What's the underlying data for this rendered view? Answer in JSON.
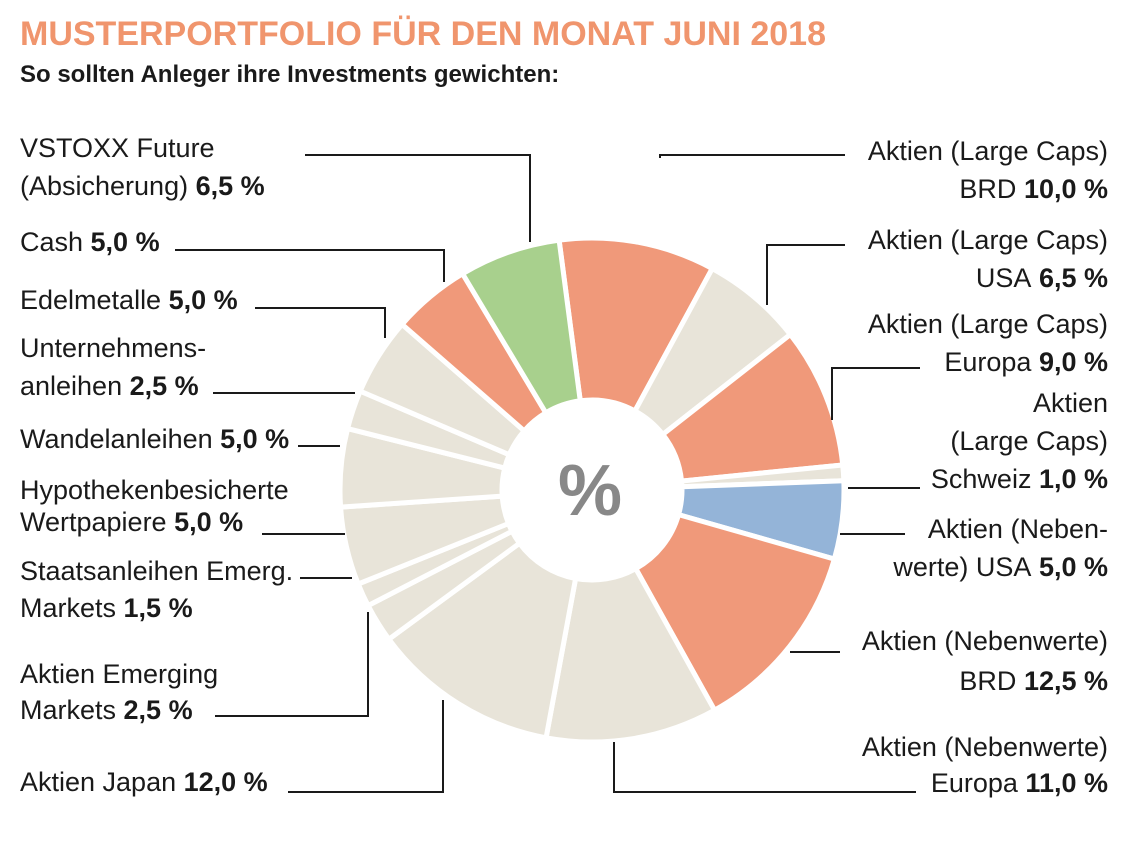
{
  "chart_data": {
    "type": "pie",
    "variant": "donut",
    "title": "MUSTERPORTFOLIO FÜR DEN MONAT JUNI 2018",
    "subtitle": "So sollten Anleger ihre Investments gewichten:",
    "center_label": "%",
    "unit": "%",
    "colors": {
      "title": "#f0956d",
      "orange": "#f0997a",
      "beige": "#e8e4d9",
      "green": "#a8d08d",
      "blue": "#94b4d8",
      "center_text": "#888888",
      "leader": "#1a1a1a"
    },
    "slices": [
      {
        "id": "aktien-large-brd",
        "label_lines": [
          "Aktien (Large Caps)",
          "BRD"
        ],
        "value_text": "10,0 %",
        "value": 10.0,
        "color": "orange"
      },
      {
        "id": "aktien-large-usa",
        "label_lines": [
          "Aktien (Large Caps)",
          "USA"
        ],
        "value_text": "6,5 %",
        "value": 6.5,
        "color": "beige"
      },
      {
        "id": "aktien-large-europa",
        "label_lines": [
          "Aktien (Large Caps)",
          "Europa"
        ],
        "value_text": "9,0  %",
        "value": 9.0,
        "color": "orange"
      },
      {
        "id": "aktien-large-schweiz",
        "label_lines": [
          "Aktien",
          "(Large Caps)",
          "Schweiz"
        ],
        "value_text": "1,0 %",
        "value": 1.0,
        "color": "beige"
      },
      {
        "id": "aktien-neben-usa",
        "label_lines": [
          "Aktien (Neben-",
          "werte) USA"
        ],
        "value_text": "5,0 %",
        "value": 5.0,
        "color": "blue"
      },
      {
        "id": "aktien-neben-brd",
        "label_lines": [
          "Aktien (Nebenwerte)",
          "BRD"
        ],
        "value_text": "12,5 %",
        "value": 12.5,
        "color": "orange"
      },
      {
        "id": "aktien-neben-europa",
        "label_lines": [
          "Aktien (Nebenwerte)",
          "Europa"
        ],
        "value_text": "11,0 %",
        "value": 11.0,
        "color": "beige"
      },
      {
        "id": "aktien-japan",
        "label_lines": [
          "Aktien Japan"
        ],
        "value_text": "12,0 %",
        "value": 12.0,
        "color": "beige"
      },
      {
        "id": "aktien-emerging",
        "label_lines": [
          "Aktien Emerging",
          "Markets"
        ],
        "value_text": "2,5 %",
        "value": 2.5,
        "color": "beige"
      },
      {
        "id": "staatsanleihen-emerg",
        "label_lines": [
          "Staatsanleihen Emerg.",
          "Markets"
        ],
        "value_text": "1,5 %",
        "value": 1.5,
        "color": "beige"
      },
      {
        "id": "hypotheken",
        "label_lines": [
          "Hypothekenbesicherte",
          "Wertpapiere"
        ],
        "value_text": "5,0 %",
        "value": 5.0,
        "color": "beige"
      },
      {
        "id": "wandelanleihen",
        "label_lines": [
          "Wandelanleihen"
        ],
        "value_text": "5,0 %",
        "value": 5.0,
        "color": "beige"
      },
      {
        "id": "unternehmensanleihen",
        "label_lines": [
          "Unternehmens-",
          "anleihen"
        ],
        "value_text": "2,5 %",
        "value": 2.5,
        "color": "beige"
      },
      {
        "id": "edelmetalle",
        "label_lines": [
          "Edelmetalle"
        ],
        "value_text": "5,0 %",
        "value": 5.0,
        "color": "beige"
      },
      {
        "id": "cash",
        "label_lines": [
          "Cash"
        ],
        "value_text": "5,0 %",
        "value": 5.0,
        "color": "orange"
      },
      {
        "id": "vstoxx",
        "label_lines": [
          "VSTOXX Future",
          "(Absicherung)"
        ],
        "value_text": "6,5 %",
        "value": 6.5,
        "color": "green"
      }
    ]
  }
}
